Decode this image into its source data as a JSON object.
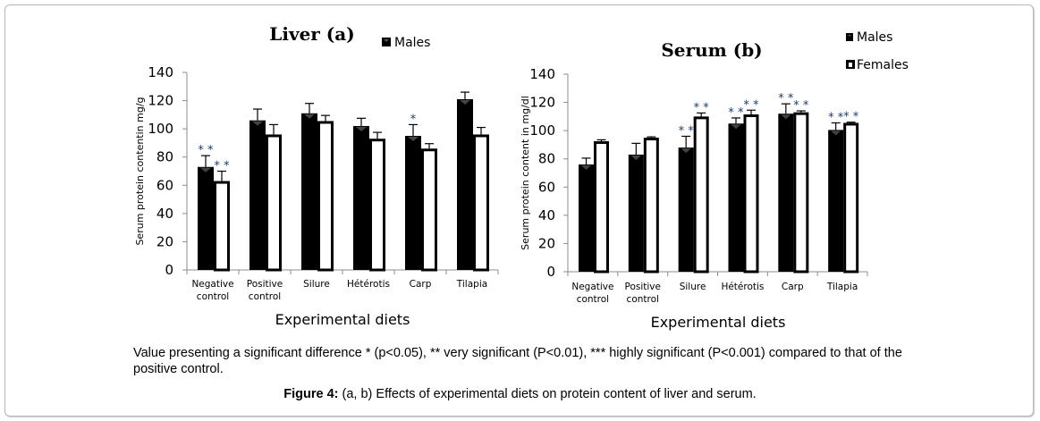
{
  "figure": {
    "note": "Value presenting a significant difference * (p<0.05), ** very significant (P<0.01), *** highly significant (P<0.001) compared to that of the positive control.",
    "caption_label": "Figure 4:",
    "caption_text": " (a, b) Effects of experimental diets on protein content of liver and serum."
  },
  "colors": {
    "males": "#000000",
    "females": "#ffffff",
    "axis": "#8c8c8c",
    "stars": "#1f3a66"
  },
  "chart_data": [
    {
      "type": "bar",
      "title": "Liver (a)",
      "xlabel": "Experimental diets",
      "ylabel": "Serum protein contentin mg/g",
      "ylim": [
        0,
        140
      ],
      "yticks": [
        0,
        20,
        40,
        60,
        80,
        100,
        120,
        140
      ],
      "grid": false,
      "legend": {
        "placement": "top-right",
        "entries": [
          "Males"
        ]
      },
      "categories": [
        [
          "Negative",
          "control"
        ],
        [
          "Positive",
          "control"
        ],
        [
          "Silure"
        ],
        [
          "Hétérotis"
        ],
        [
          "Carp"
        ],
        [
          "Tilapia"
        ]
      ],
      "series": [
        {
          "name": "Males",
          "values": [
            73,
            106,
            111,
            102,
            95,
            121
          ],
          "error": [
            8,
            8,
            7,
            5.5,
            8,
            5
          ],
          "significance": [
            "**",
            "",
            "",
            "",
            "*",
            ""
          ]
        },
        {
          "name": "Females",
          "values": [
            63,
            96,
            105.5,
            93,
            86,
            96
          ],
          "error": [
            7,
            7,
            4,
            4.5,
            3.5,
            5
          ],
          "significance": [
            "**",
            "",
            "",
            "",
            "",
            ""
          ]
        }
      ]
    },
    {
      "type": "bar",
      "title": "Serum (b)",
      "xlabel": "Experimental diets",
      "ylabel": "Serum protein content  in mg/dl",
      "ylim": [
        0,
        140
      ],
      "yticks": [
        0,
        20,
        40,
        60,
        80,
        100,
        120,
        140
      ],
      "grid": false,
      "legend": {
        "placement": "top-right",
        "entries": [
          "Males",
          "Females"
        ]
      },
      "categories": [
        [
          "Negative",
          "control"
        ],
        [
          "Positive",
          "control"
        ],
        [
          "Silure"
        ],
        [
          "Hétérotis"
        ],
        [
          "Carp"
        ],
        [
          "Tilapia"
        ]
      ],
      "series": [
        {
          "name": "Males",
          "values": [
            76,
            83,
            88,
            105,
            112,
            100.5
          ],
          "error": [
            4.5,
            8,
            8,
            4,
            7,
            5
          ],
          "significance": [
            "",
            "",
            "**",
            "**",
            "**",
            "**"
          ]
        },
        {
          "name": "Females",
          "values": [
            92.5,
            95,
            110,
            111.5,
            113,
            105.5
          ],
          "error": [
            1,
            0.6,
            2.5,
            3,
            1,
            0.5
          ],
          "significance": [
            "",
            "",
            "**",
            "**",
            "**",
            "**"
          ]
        }
      ]
    }
  ]
}
